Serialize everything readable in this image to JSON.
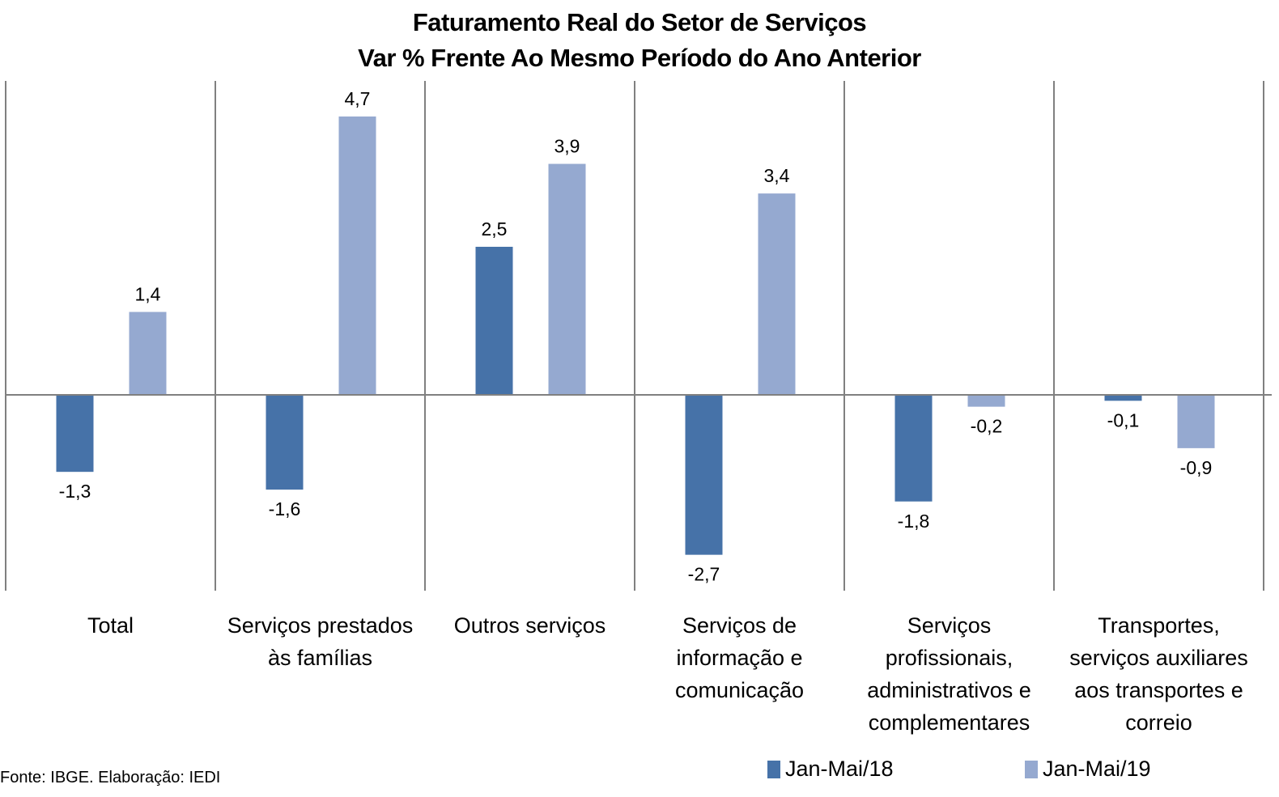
{
  "chart_data": {
    "type": "bar",
    "title": "Faturamento Real do Setor de Serviços",
    "subtitle": "Var % Frente Ao Mesmo Período do Ano Anterior",
    "xlabel": "",
    "ylabel": "",
    "ylim": [
      -3.3,
      5.3
    ],
    "grid": false,
    "legend_position": "bottom-right",
    "categories": [
      "Total",
      "Serviços prestados\nàs famílias",
      "Outros serviços",
      "Serviços de\ninformação e\ncomunicação",
      "Serviços\nprofissionais,\nadministrativos e\ncomplementares",
      "Transportes,\nserviços auxiliares\naos transportes e\ncorreio"
    ],
    "series": [
      {
        "name": "Jan-Mai/18",
        "color": "#4672A8",
        "values": [
          -1.3,
          -1.6,
          2.5,
          -2.7,
          -1.8,
          -0.1
        ],
        "labels": [
          "-1,3",
          "-1,6",
          "2,5",
          "-2,7",
          "-1,8",
          "-0,1"
        ]
      },
      {
        "name": "Jan-Mai/19",
        "color": "#95A9D0",
        "values": [
          1.4,
          4.7,
          3.9,
          3.4,
          -0.2,
          -0.9
        ],
        "labels": [
          "1,4",
          "4,7",
          "3,9",
          "3,4",
          "-0,2",
          "-0,9"
        ]
      }
    ]
  },
  "source": "Fonte: IBGE. Elaboração: IEDI"
}
